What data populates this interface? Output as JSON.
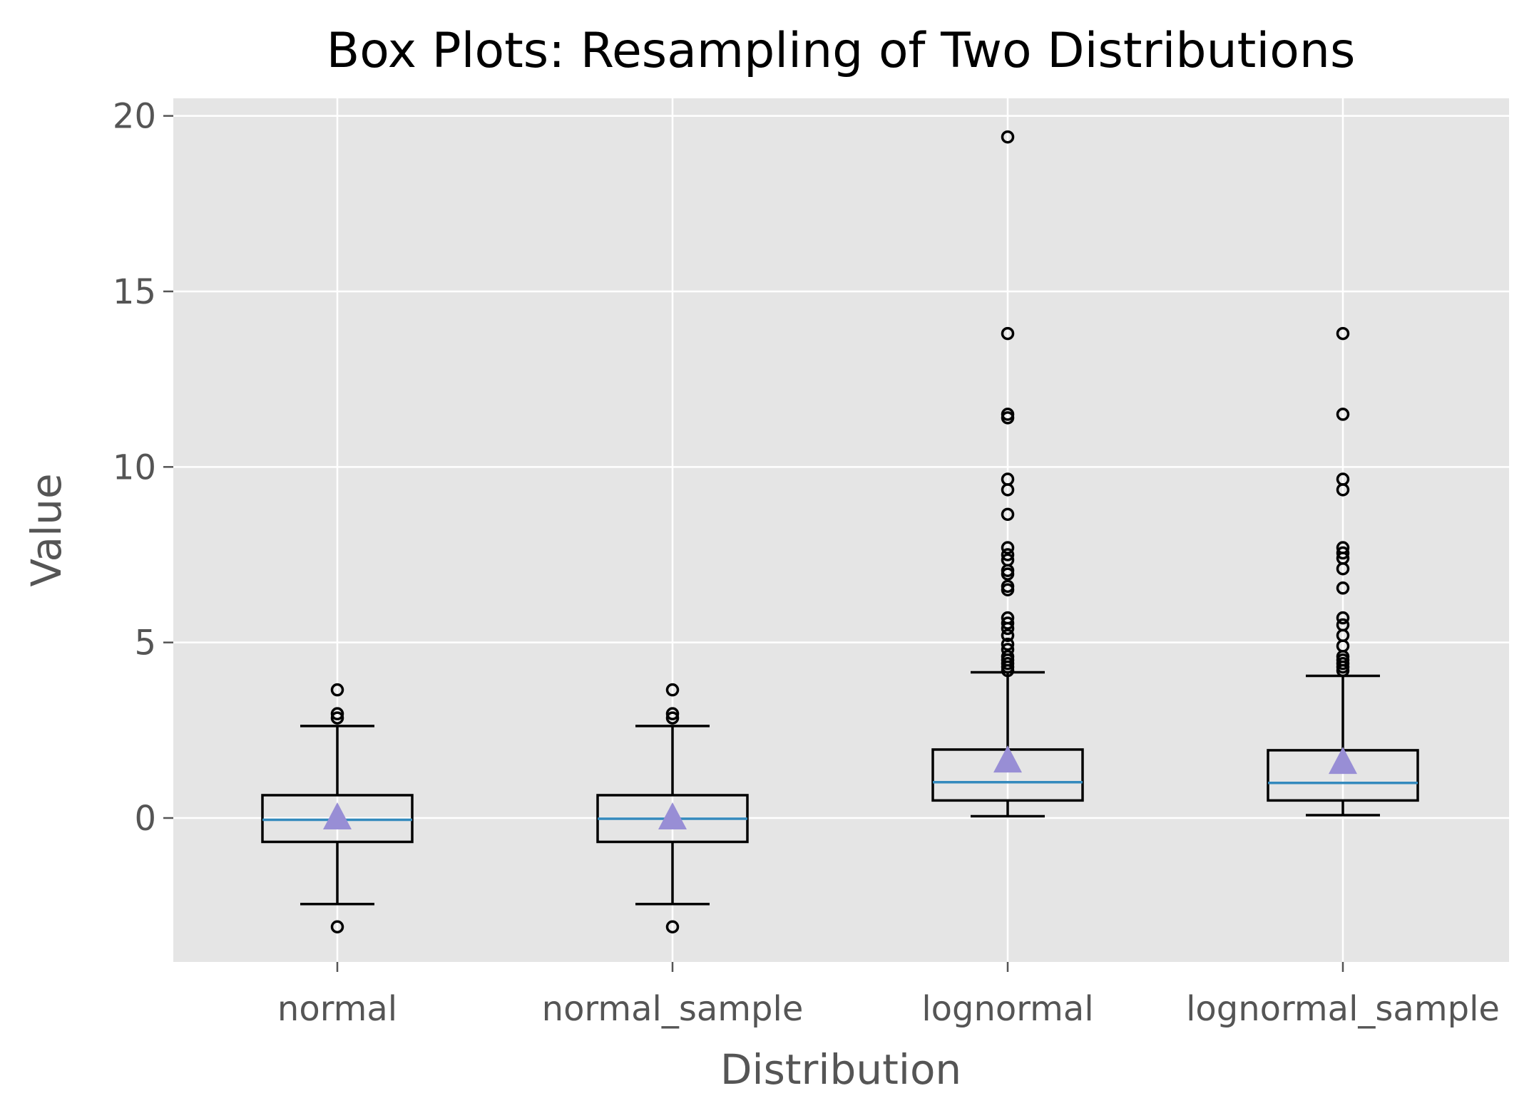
{
  "chart_data": {
    "type": "box",
    "title": "Box Plots: Resampling of Two Distributions",
    "xlabel": "Distribution",
    "ylabel": "Value",
    "ylim": [
      -4.1,
      20.5
    ],
    "yticks": [
      0,
      5,
      10,
      15,
      20
    ],
    "grid": true,
    "background": "#e5e5e5",
    "grid_color": "#ffffff",
    "median_color": "#348abd",
    "mean_marker_color": "#988ed5",
    "box_color": "#000000",
    "categories": [
      "normal",
      "normal_sample",
      "lognormal",
      "lognormal_sample"
    ],
    "series": [
      {
        "name": "normal",
        "whisker_low": -2.45,
        "q1": -0.68,
        "median": -0.05,
        "q3": 0.65,
        "whisker_high": 2.62,
        "mean": 0.0,
        "outliers": [
          3.65,
          2.97,
          2.85,
          -3.1
        ]
      },
      {
        "name": "normal_sample",
        "whisker_low": -2.45,
        "q1": -0.68,
        "median": -0.02,
        "q3": 0.65,
        "whisker_high": 2.62,
        "mean": 0.0,
        "outliers": [
          3.65,
          2.97,
          2.85,
          -3.1
        ]
      },
      {
        "name": "lognormal",
        "whisker_low": 0.05,
        "q1": 0.5,
        "median": 1.02,
        "q3": 1.95,
        "whisker_high": 4.15,
        "mean": 1.62,
        "outliers": [
          19.4,
          13.8,
          11.5,
          11.4,
          9.65,
          9.35,
          8.65,
          7.7,
          7.5,
          7.35,
          7.05,
          6.95,
          6.6,
          6.5,
          5.7,
          5.55,
          5.4,
          5.2,
          4.95,
          4.8,
          4.6,
          4.5,
          4.4,
          4.3,
          4.2
        ]
      },
      {
        "name": "lognormal_sample",
        "whisker_low": 0.08,
        "q1": 0.5,
        "median": 1.0,
        "q3": 1.93,
        "whisker_high": 4.05,
        "mean": 1.58,
        "outliers": [
          13.8,
          11.5,
          9.65,
          9.35,
          7.7,
          7.55,
          7.4,
          7.1,
          6.55,
          5.7,
          5.5,
          5.2,
          4.9,
          4.6,
          4.5,
          4.4,
          4.3,
          4.2
        ]
      }
    ]
  }
}
